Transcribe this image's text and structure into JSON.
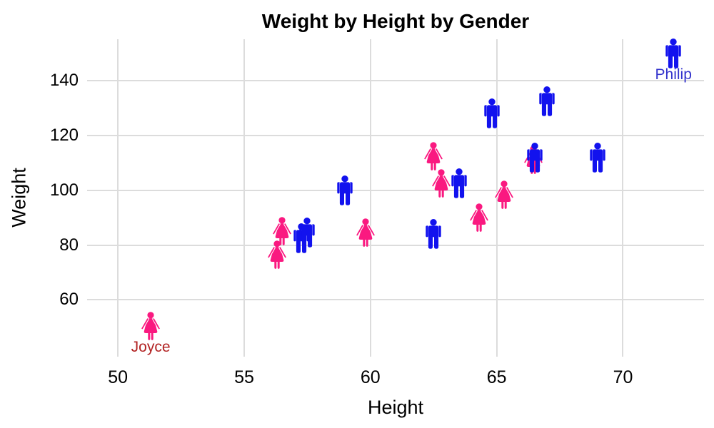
{
  "title": "Weight by Height by Gender",
  "colors": {
    "background": "#FFFFFF",
    "gridline": "#DCDCDC",
    "text": "#000000",
    "male": "#1212EE",
    "female": "#FA1980",
    "joyce_label": "#B22222",
    "philip_label": "#3333CC"
  },
  "chart_data": {
    "type": "scatter",
    "title": "Weight by Height by Gender",
    "xlabel": "Height",
    "ylabel": "Weight",
    "x_ticks": [
      50,
      55,
      60,
      65,
      70
    ],
    "y_ticks": [
      60,
      80,
      100,
      120,
      140
    ],
    "xlim": [
      48.78,
      73.21
    ],
    "ylim": [
      39.3,
      155.1
    ],
    "grid": "major-only",
    "legend": "none",
    "point_glyph": "person-pictogram",
    "series": [
      {
        "name": "Female",
        "gender": "female",
        "color": "#FA1980",
        "points": [
          {
            "x": 51.3,
            "y": 50.5,
            "label": "Joyce",
            "label_color": "#B22222"
          },
          {
            "x": 56.5,
            "y": 85
          },
          {
            "x": 56.3,
            "y": 76.5
          },
          {
            "x": 59.8,
            "y": 84.5
          },
          {
            "x": 62.5,
            "y": 112.5
          },
          {
            "x": 62.8,
            "y": 102.5
          },
          {
            "x": 64.3,
            "y": 90
          },
          {
            "x": 65.3,
            "y": 98.5
          },
          {
            "x": 66.45,
            "y": 111
          }
        ]
      },
      {
        "name": "Male",
        "gender": "male",
        "color": "#1212EE",
        "points": [
          {
            "x": 57.25,
            "y": 82.5
          },
          {
            "x": 57.5,
            "y": 84.5
          },
          {
            "x": 59.0,
            "y": 100
          },
          {
            "x": 62.5,
            "y": 84
          },
          {
            "x": 63.5,
            "y": 102.5
          },
          {
            "x": 64.8,
            "y": 128
          },
          {
            "x": 66.5,
            "y": 112
          },
          {
            "x": 67.0,
            "y": 132.5
          },
          {
            "x": 69.0,
            "y": 112
          },
          {
            "x": 72.0,
            "y": 150,
            "label": "Philip",
            "label_color": "#3333CC"
          }
        ]
      }
    ]
  }
}
